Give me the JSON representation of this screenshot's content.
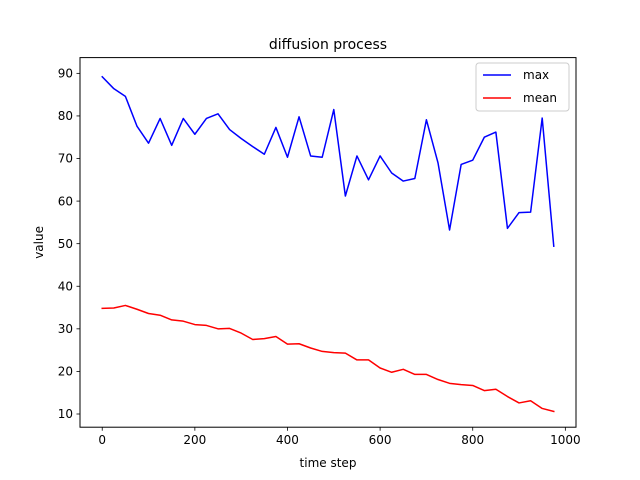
{
  "chart_data": {
    "type": "line",
    "title": "diffusion process",
    "xlabel": "time step",
    "ylabel": "value",
    "xlim": [
      -48,
      1023
    ],
    "ylim": [
      6.9,
      93.7
    ],
    "x_ticks": [
      0,
      200,
      400,
      600,
      800,
      1000
    ],
    "y_ticks": [
      10,
      20,
      30,
      40,
      50,
      60,
      70,
      80,
      90
    ],
    "grid": false,
    "legend_position": "upper right",
    "x": [
      0,
      25,
      50,
      75,
      100,
      125,
      150,
      175,
      200,
      225,
      250,
      275,
      300,
      325,
      350,
      375,
      400,
      425,
      450,
      475,
      500,
      525,
      550,
      575,
      600,
      625,
      650,
      675,
      700,
      725,
      750,
      775,
      800,
      825,
      850,
      875,
      900,
      925,
      950,
      975
    ],
    "series": [
      {
        "name": "max",
        "color": "#0000ff",
        "values": [
          89.2,
          86.4,
          84.6,
          77.6,
          73.6,
          79.4,
          73.1,
          79.4,
          75.7,
          79.4,
          80.5,
          76.8,
          74.7,
          72.8,
          71.0,
          77.3,
          70.3,
          79.8,
          70.6,
          70.3,
          81.5,
          61.2,
          70.6,
          65.0,
          70.6,
          66.6,
          64.7,
          65.3,
          79.1,
          69.0,
          53.2,
          68.6,
          69.6,
          75.0,
          76.2,
          53.6,
          57.3,
          57.4,
          79.5,
          49.4
        ]
      },
      {
        "name": "mean",
        "color": "#ff0000",
        "values": [
          34.8,
          34.9,
          35.5,
          34.6,
          33.6,
          33.2,
          32.1,
          31.8,
          31.0,
          30.8,
          30.0,
          30.1,
          29.0,
          27.5,
          27.7,
          28.2,
          26.4,
          26.5,
          25.5,
          24.7,
          24.4,
          24.3,
          22.7,
          22.7,
          20.8,
          19.8,
          20.5,
          19.3,
          19.3,
          18.1,
          17.2,
          16.9,
          16.7,
          15.5,
          15.8,
          14.1,
          12.6,
          13.1,
          11.3,
          10.6
        ]
      }
    ]
  }
}
